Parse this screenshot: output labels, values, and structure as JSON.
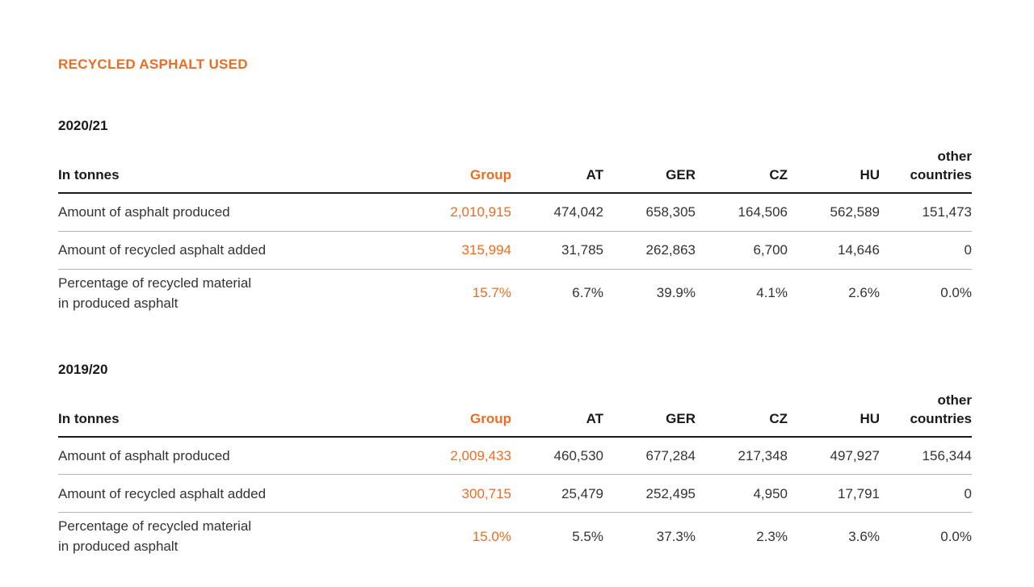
{
  "page": {
    "title": "RECYCLED ASPHALT USED",
    "colors": {
      "accent_orange": "#ED6C21",
      "text_dark": "#1A1A1A",
      "text_body": "#333333",
      "rule_thick": "#1A1A1A",
      "rule_thin": "#B3B3B3",
      "background": "#FFFFFF"
    }
  },
  "columns": {
    "label": "In tonnes",
    "group": "Group",
    "at": "AT",
    "ger": "GER",
    "cz": "CZ",
    "hu": "HU",
    "other": "other\ncountries"
  },
  "sections": [
    {
      "period": "2020/21",
      "rows": [
        {
          "label": "Amount of asphalt produced",
          "group": "2,010,915",
          "at": "474,042",
          "ger": "658,305",
          "cz": "164,506",
          "hu": "562,589",
          "other": "151,473"
        },
        {
          "label": "Amount of recycled asphalt added",
          "group": "315,994",
          "at": "31,785",
          "ger": "262,863",
          "cz": "6,700",
          "hu": "14,646",
          "other": "0"
        },
        {
          "label": "Percentage of recycled material\nin produced asphalt",
          "group": "15.7%",
          "at": "6.7%",
          "ger": "39.9%",
          "cz": "4.1%",
          "hu": "2.6%",
          "other": "0.0%"
        }
      ]
    },
    {
      "period": "2019/20",
      "rows": [
        {
          "label": "Amount of asphalt produced",
          "group": "2,009,433",
          "at": "460,530",
          "ger": "677,284",
          "cz": "217,348",
          "hu": "497,927",
          "other": "156,344"
        },
        {
          "label": "Amount of recycled asphalt added",
          "group": "300,715",
          "at": "25,479",
          "ger": "252,495",
          "cz": "4,950",
          "hu": "17,791",
          "other": "0"
        },
        {
          "label": "Percentage of recycled material\nin produced asphalt",
          "group": "15.0%",
          "at": "5.5%",
          "ger": "37.3%",
          "cz": "2.3%",
          "hu": "3.6%",
          "other": "0.0%"
        }
      ]
    }
  ]
}
